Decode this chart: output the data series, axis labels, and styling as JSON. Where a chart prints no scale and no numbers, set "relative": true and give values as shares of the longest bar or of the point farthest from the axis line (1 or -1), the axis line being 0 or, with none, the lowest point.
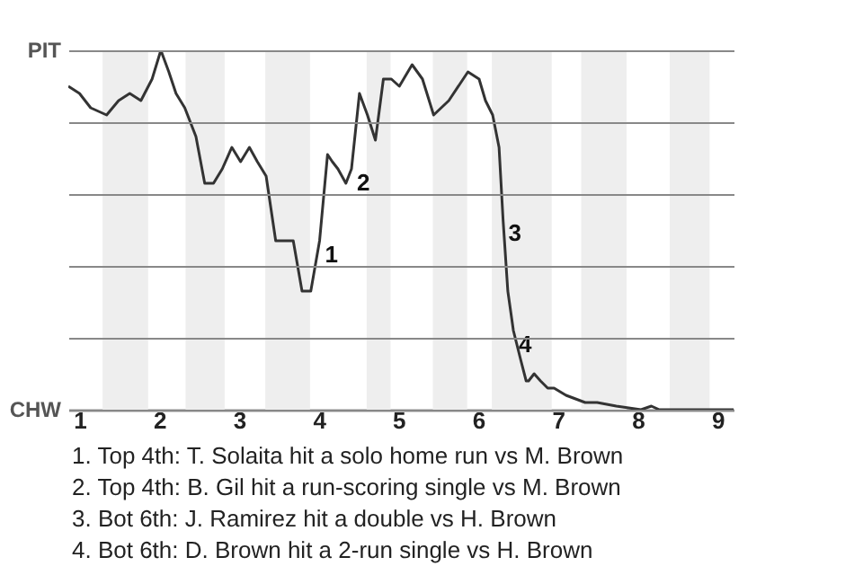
{
  "chart_data": {
    "type": "line",
    "relative": true,
    "x": [
      0.86,
      1,
      1.14,
      1.34,
      1.49,
      1.63,
      1.77,
      1.91,
      2.02,
      2.12,
      2.21,
      2.32,
      2.46,
      2.57,
      2.68,
      2.79,
      2.91,
      3.02,
      3.13,
      3.23,
      3.34,
      3.46,
      3.68,
      3.79,
      3.9,
      4.01,
      4.11,
      4.17,
      4.24,
      4.34,
      4.41,
      4.51,
      4.61,
      4.71,
      4.81,
      4.91,
      5.01,
      5.17,
      5.3,
      5.44,
      5.63,
      5.87,
      6.01,
      6.09,
      6.18,
      6.26,
      6.31,
      6.37,
      6.44,
      6.53,
      6.6,
      6.63,
      6.7,
      6.78,
      6.87,
      6.95,
      7.1,
      7.34,
      7.49,
      7.73,
      8.04,
      8.17,
      8.27,
      8.44,
      8.91,
      9.2
    ],
    "series": [
      {
        "color": "#333333",
        "values": [
          0.9,
          0.88,
          0.84,
          0.82,
          0.86,
          0.88,
          0.86,
          0.92,
          1,
          0.94,
          0.88,
          0.84,
          0.76,
          0.63,
          0.63,
          0.67,
          0.73,
          0.69,
          0.73,
          0.69,
          0.65,
          0.47,
          0.47,
          0.33,
          0.33,
          0.47,
          0.71,
          0.69,
          0.67,
          0.63,
          0.67,
          0.88,
          0.82,
          0.75,
          0.92,
          0.92,
          0.9,
          0.96,
          0.92,
          0.82,
          0.86,
          0.94,
          0.92,
          0.86,
          0.82,
          0.73,
          0.53,
          0.33,
          0.22,
          0.14,
          0.08,
          0.08,
          0.1,
          0.08,
          0.06,
          0.06,
          0.04,
          0.02,
          0.02,
          0.01,
          0,
          0.01,
          0,
          0,
          0,
          0
        ]
      }
    ],
    "xlim": [
      0.86,
      9.2
    ],
    "xticks": [
      1,
      2,
      3,
      4,
      5,
      6,
      7,
      8,
      9
    ],
    "grid": "y",
    "bands": [
      {
        "axis": "x",
        "from": 1.29,
        "to": 1.86,
        "color": "#eeeeee"
      },
      {
        "axis": "x",
        "from": 2.33,
        "to": 2.82,
        "color": "#eeeeee"
      },
      {
        "axis": "x",
        "from": 3.33,
        "to": 3.89,
        "color": "#eeeeee"
      },
      {
        "axis": "x",
        "from": 4.6,
        "to": 4.9,
        "color": "#eeeeee"
      },
      {
        "axis": "x",
        "from": 5.43,
        "to": 5.86,
        "color": "#eeeeee"
      },
      {
        "axis": "x",
        "from": 6.17,
        "to": 6.92,
        "color": "#eeeeee"
      },
      {
        "axis": "x",
        "from": 7.29,
        "to": 7.86,
        "color": "#eeeeee"
      },
      {
        "axis": "x",
        "from": 8.4,
        "to": 8.9,
        "color": "#eeeeee"
      }
    ],
    "annotations": [
      "PIT",
      "CHW",
      {
        "text": "1",
        "x": 4.01,
        "y": 0.47
      },
      {
        "text": "2",
        "x": 4.41,
        "y": 0.67
      },
      {
        "text": "3",
        "x": 6.31,
        "y": 0.53
      },
      {
        "text": "4",
        "x": 6.44,
        "y": 0.22
      },
      "1. Top 4th: T. Solaita hit a solo home run vs M. Brown",
      "2. Top 4th: B. Gil hit a run-scoring single vs M. Brown",
      "3. Bot 6th: J. Ramirez hit a double vs H. Brown",
      "4. Bot 6th: D. Brown hit a 2-run single vs H. Brown"
    ]
  }
}
